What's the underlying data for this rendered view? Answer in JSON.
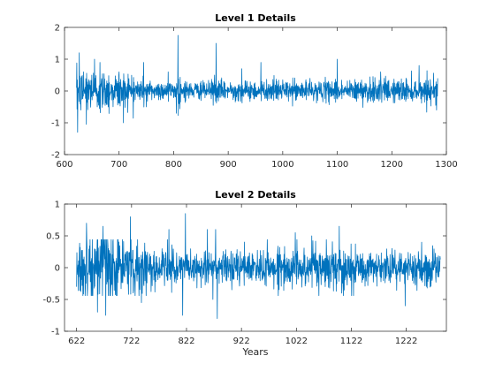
{
  "chart_data": [
    {
      "type": "line",
      "title": "Level 1 Details",
      "xlabel": "",
      "ylabel": "",
      "xlim": [
        600,
        1300
      ],
      "ylim": [
        -2,
        2
      ],
      "xticks": [
        600,
        700,
        800,
        900,
        1000,
        1100,
        1200,
        1300
      ],
      "yticks": [
        -2,
        -1,
        0,
        1,
        2
      ],
      "grid": false,
      "series": [
        {
          "color": "#0072bd",
          "x_range": [
            622,
            1284
          ],
          "x": [
            622,
            624,
            627,
            630,
            635,
            640,
            650,
            655,
            660,
            665,
            680,
            700,
            708,
            715,
            745,
            750,
            790,
            805,
            808,
            810,
            850,
            875,
            878,
            880,
            925,
            960,
            1000,
            1050,
            1100,
            1180,
            1250,
            1282,
            1284
          ],
          "values": [
            0.1,
            -1.3,
            1.2,
            -0.6,
            0.6,
            -1.05,
            0.5,
            1.0,
            -0.5,
            0.9,
            -0.5,
            0.6,
            -1.0,
            -0.2,
            0.9,
            -0.5,
            0.6,
            -0.7,
            1.75,
            -0.4,
            0.3,
            0.5,
            1.5,
            -0.2,
            0.7,
            0.9,
            0.35,
            0.4,
            1.0,
            0.3,
            0.8,
            -0.6,
            0.4
          ]
        }
      ]
    },
    {
      "type": "line",
      "title": "Level 2 Details",
      "xlabel": "Years",
      "ylabel": "",
      "xlim": [
        600,
        1295
      ],
      "ylim": [
        -1,
        1
      ],
      "xticks": [
        622,
        722,
        822,
        922,
        1022,
        1122,
        1222
      ],
      "yticks": [
        -1,
        -0.5,
        0,
        0.5,
        1
      ],
      "grid": false,
      "series": [
        {
          "color": "#0072bd",
          "x_range": [
            622,
            1284
          ],
          "x": [
            622,
            640,
            660,
            670,
            675,
            680,
            720,
            740,
            790,
            815,
            820,
            822,
            860,
            870,
            875,
            878,
            880,
            1020,
            1050,
            1100,
            1220,
            1250,
            1283
          ],
          "values": [
            -0.3,
            0.7,
            -0.7,
            0.65,
            -0.75,
            0.3,
            0.8,
            -0.55,
            0.6,
            -0.75,
            0.85,
            0.2,
            0.6,
            -0.5,
            0.6,
            -0.8,
            0.1,
            0.55,
            0.5,
            0.65,
            -0.6,
            0.4,
            0.0
          ]
        }
      ]
    }
  ]
}
